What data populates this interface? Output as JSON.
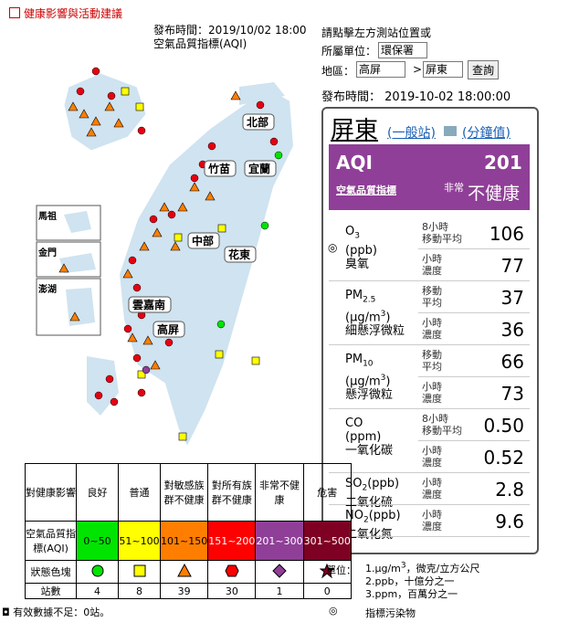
{
  "header": {
    "link": "健康影響與活動建議",
    "publish": "發布時間：2019/10/02 18:00",
    "subtitle": "空氣品質指標(AQI)"
  },
  "controls": {
    "hint": "請點擊左方測站位置或",
    "unit_label": "所屬單位：",
    "unit_value": "環保署",
    "area_label": "地區：",
    "area_value": "高屏",
    "sep": ">",
    "county_value": "屏東",
    "button": "查詢",
    "time": "發布時間： 2019-10-02 18:00:00"
  },
  "map": {
    "regions": [
      "北部",
      "竹苗",
      "宜蘭",
      "中部",
      "花東",
      "雲嘉南",
      "高屏",
      "馬祖",
      "金門",
      "澎湖"
    ]
  },
  "station": {
    "name": "屏東",
    "type_link": "(一般站)",
    "minute_link": "(分鐘值)",
    "aqi_label": "AQI",
    "aqi_value": 201,
    "aqi_cn": "空氣品質指標",
    "status_small": "非常",
    "status_large": "不健康"
  },
  "pollutants": [
    {
      "marker": "◎",
      "name": [
        "O",
        "3"
      ],
      "unit": [
        "(ppb)"
      ],
      "cn": "臭氧",
      "rows": [
        {
          "label": [
            "8小時",
            "移動平均"
          ],
          "value": "106"
        },
        {
          "label": [
            "小時",
            "濃度"
          ],
          "value": "77"
        }
      ]
    },
    {
      "name": [
        "PM",
        "2.5"
      ],
      "unit": [
        "(μg/m",
        "3",
        ")"
      ],
      "cn": "細懸浮微粒",
      "rows": [
        {
          "label": [
            "移動",
            "平均"
          ],
          "value": "37"
        },
        {
          "label": [
            "小時",
            "濃度"
          ],
          "value": "36"
        }
      ]
    },
    {
      "name": [
        "PM",
        "10"
      ],
      "unit": [
        "(μg/m",
        "3",
        ")"
      ],
      "cn": "懸浮微粒",
      "rows": [
        {
          "label": [
            "移動",
            "平均"
          ],
          "value": "66"
        },
        {
          "label": [
            "小時",
            "濃度"
          ],
          "value": "73"
        }
      ]
    },
    {
      "name": [
        "CO"
      ],
      "unit": [
        "(ppm)"
      ],
      "cn": "一氧化碳",
      "rows": [
        {
          "label": [
            "8小時",
            "移動平均"
          ],
          "value": "0.50"
        },
        {
          "label": [
            "小時",
            "濃度"
          ],
          "value": "0.52"
        }
      ]
    },
    {
      "name": [
        "SO",
        "2",
        "(ppb)"
      ],
      "cn": "二氧化硫",
      "rows": [
        {
          "label": [
            "小時",
            "濃度"
          ],
          "value": "2.8"
        }
      ]
    },
    {
      "name": [
        "NO",
        "2",
        "(ppb)"
      ],
      "cn": "二氧化氮",
      "rows": [
        {
          "label": [
            "小時",
            "濃度"
          ],
          "value": "9.6"
        }
      ]
    }
  ],
  "legend": {
    "header": [
      "對健康影響",
      "良好",
      "普通",
      "對敏感族群不健康",
      "對所有族群不健康",
      "非常不健康",
      "危害"
    ],
    "aqi_label": "空氣品質指標(AQI)",
    "ranges": [
      "0~50",
      "51~100",
      "101~150",
      "151~200",
      "201~300",
      "301~500"
    ],
    "colors": [
      "#00e400",
      "#ffff00",
      "#ff7e00",
      "#ff0000",
      "#8f3f97",
      "#7e0023"
    ],
    "shape_label": "狀態色塊",
    "count_label": "站數",
    "counts": [
      "4",
      "8",
      "39",
      "30",
      "1",
      "0"
    ]
  },
  "footnote": "有效數據不足：0站。",
  "units": {
    "label": "單位：",
    "lines": [
      [
        "1.μg/m",
        "3",
        "，微克/立方公尺"
      ],
      [
        "2.ppb，十億分之一"
      ],
      [
        "3.ppm，百萬分之一"
      ]
    ],
    "marker": "◎",
    "marker_text": "指標污染物"
  }
}
